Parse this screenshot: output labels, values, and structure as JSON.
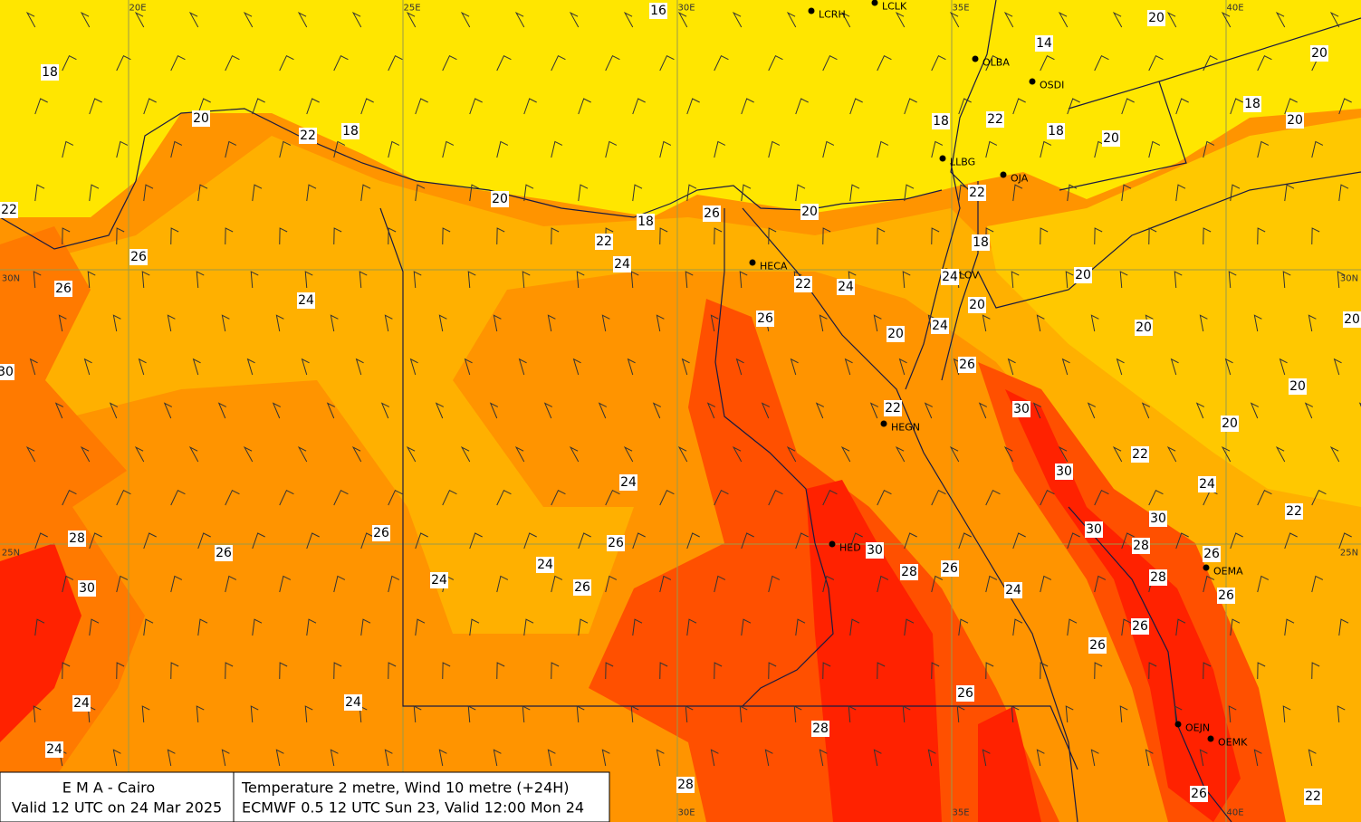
{
  "grid_labels": [
    "20E",
    "25E",
    "30E",
    "35E",
    "40E",
    "30N",
    "30N",
    "25N",
    "25N",
    "30E",
    "35E",
    "40E"
  ],
  "contour_labels": [
    16,
    14,
    20,
    20,
    18,
    20,
    22,
    18,
    18,
    22,
    18,
    20,
    18,
    20,
    22,
    20,
    18,
    26,
    20,
    22,
    22,
    18,
    26,
    24,
    26,
    24,
    22,
    24,
    24,
    20,
    20,
    26,
    20,
    24,
    20,
    20,
    30,
    26,
    20,
    22,
    30,
    20,
    22,
    30,
    24,
    24,
    22,
    30,
    30,
    28,
    26,
    26,
    26,
    24,
    28,
    26,
    30,
    28,
    26,
    24,
    26,
    30,
    28,
    24,
    26,
    26,
    26,
    24,
    24,
    26,
    28,
    24,
    28,
    26,
    22
  ],
  "stations": [
    "LCRH",
    "LCLK",
    "OLBA",
    "OSDI",
    "LLBG",
    "OJA",
    "HECA",
    "LLOV",
    "HEGN",
    "HED",
    "OEMA",
    "OEJN",
    "OEMK"
  ],
  "info": {
    "agency": "E M A  -  Cairo",
    "valid": "Valid 12 UTC on 24 Mar 2025",
    "product": "Temperature  2 metre, Wind  10 metre (+24H)",
    "model": "ECMWF 0.5 12 UTC Sun 23, Valid 12:00 Mon 24"
  }
}
